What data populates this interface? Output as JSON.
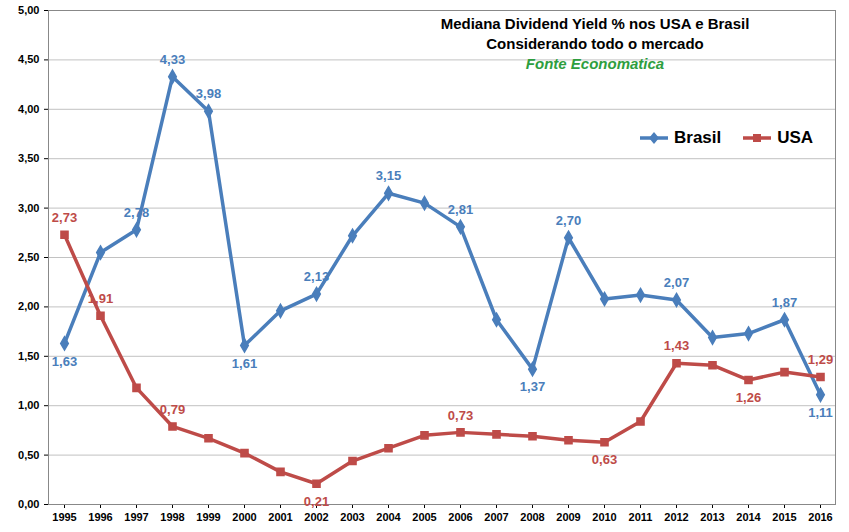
{
  "chart_data": {
    "type": "line",
    "title": "Mediana Dividend Yield % nos USA e Brasil",
    "subtitle": "Considerando todo o mercado",
    "caption": "Fonte Economatica",
    "categories": [
      "1995",
      "1996",
      "1997",
      "1998",
      "1999",
      "2000",
      "2001",
      "2002",
      "2003",
      "2004",
      "2005",
      "2006",
      "2007",
      "2008",
      "2009",
      "2010",
      "2011",
      "2012",
      "2013",
      "2014",
      "2015",
      "2016"
    ],
    "series": [
      {
        "name": "Brasil",
        "color": "#4a7ebb",
        "marker": "diamond",
        "values": [
          1.63,
          2.55,
          2.78,
          4.33,
          3.98,
          1.61,
          1.96,
          2.13,
          2.72,
          3.15,
          3.05,
          2.81,
          1.87,
          1.37,
          2.7,
          2.08,
          2.12,
          2.07,
          1.69,
          1.73,
          1.87,
          1.11
        ],
        "value_labels": [
          "1,63",
          null,
          "2,78",
          "4,33",
          "3,98",
          "1,61",
          null,
          "2,13",
          null,
          "3,15",
          null,
          "2,81",
          null,
          "1,37",
          "2,70",
          null,
          null,
          "2,07",
          null,
          null,
          "1,87",
          "1,11"
        ]
      },
      {
        "name": "USA",
        "color": "#be4b48",
        "marker": "square",
        "values": [
          2.73,
          1.91,
          1.18,
          0.79,
          0.67,
          0.52,
          0.33,
          0.21,
          0.44,
          0.57,
          0.7,
          0.73,
          0.71,
          0.69,
          0.65,
          0.63,
          0.84,
          1.43,
          1.41,
          1.26,
          1.34,
          1.29
        ],
        "value_labels": [
          "2,73",
          "1,91",
          null,
          "0,79",
          null,
          null,
          null,
          "0,21",
          null,
          null,
          null,
          "0,73",
          null,
          null,
          null,
          "0,63",
          null,
          "1,43",
          null,
          "1,26",
          null,
          "1,29"
        ]
      }
    ],
    "ylim": [
      0,
      5
    ],
    "yticks": [
      {
        "value": 0,
        "label": "0,00"
      },
      {
        "value": 0.5,
        "label": "0,50"
      },
      {
        "value": 1,
        "label": "1,00"
      },
      {
        "value": 1.5,
        "label": "1,50"
      },
      {
        "value": 2,
        "label": "2,00"
      },
      {
        "value": 2.5,
        "label": "2,50"
      },
      {
        "value": 3,
        "label": "3,00"
      },
      {
        "value": 3.5,
        "label": "3,50"
      },
      {
        "value": 4,
        "label": "4,00"
      },
      {
        "value": 4.5,
        "label": "4,50"
      },
      {
        "value": 5,
        "label": "5,00"
      }
    ],
    "grid": true,
    "legend": "upper right",
    "data_labels": true
  }
}
